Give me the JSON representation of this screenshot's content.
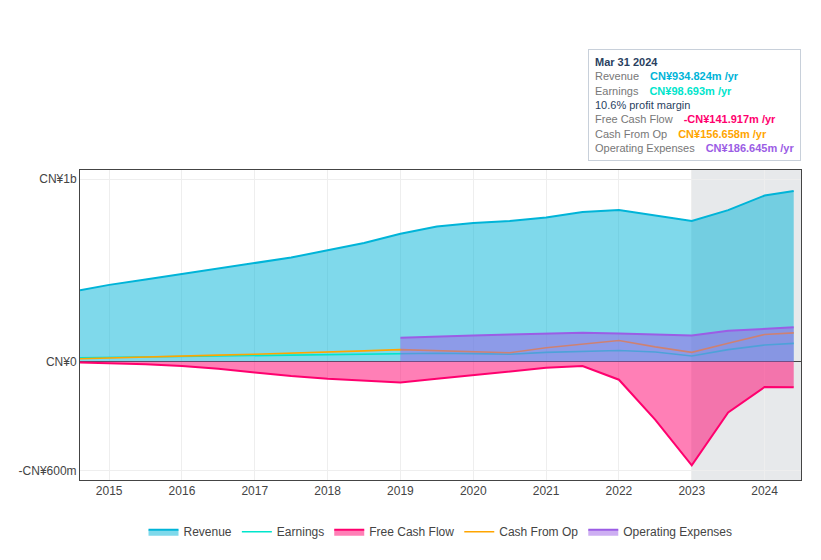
{
  "chart_data": {
    "type": "area",
    "x": [
      2014.6,
      2015.0,
      2015.5,
      2016.0,
      2016.5,
      2017.0,
      2017.5,
      2018.0,
      2018.5,
      2019.0,
      2019.5,
      2020.0,
      2020.5,
      2021.0,
      2021.5,
      2022.0,
      2022.5,
      2023.0,
      2023.5,
      2024.0,
      2024.4
    ],
    "series": [
      {
        "name": "Revenue",
        "color": "#00b4d8",
        "type": "area",
        "values": [
          390,
          420,
          450,
          480,
          510,
          540,
          570,
          610,
          650,
          700,
          740,
          760,
          770,
          790,
          820,
          830,
          800,
          770,
          830,
          910,
          935
        ]
      },
      {
        "name": "Earnings",
        "color": "#00e5cc",
        "type": "line",
        "values": [
          20,
          22,
          25,
          28,
          30,
          32,
          35,
          38,
          40,
          42,
          45,
          43,
          40,
          50,
          55,
          60,
          52,
          30,
          65,
          90,
          99
        ]
      },
      {
        "name": "Free Cash Flow",
        "color": "#ff006e",
        "type": "area",
        "values": [
          -5,
          -8,
          -15,
          -25,
          -40,
          -60,
          -80,
          -95,
          -105,
          -115,
          -95,
          -75,
          -55,
          -35,
          -25,
          -100,
          -320,
          -570,
          -280,
          -140,
          -142
        ]
      },
      {
        "name": "Cash From Op",
        "color": "#ffa500",
        "type": "line",
        "values": [
          15,
          20,
          25,
          30,
          35,
          40,
          45,
          52,
          58,
          65,
          60,
          52,
          48,
          75,
          95,
          115,
          80,
          50,
          100,
          148,
          157
        ]
      },
      {
        "name": "Operating Expenses",
        "color": "#9b5de5",
        "type": "area",
        "x": [
          2019.0,
          2019.5,
          2020.0,
          2020.5,
          2021.0,
          2021.5,
          2022.0,
          2022.5,
          2023.0,
          2023.5,
          2024.0,
          2024.4
        ],
        "values": [
          130,
          138,
          143,
          148,
          153,
          158,
          153,
          148,
          143,
          168,
          178,
          187
        ]
      }
    ],
    "xlim": [
      2014.6,
      2024.5
    ],
    "xticks": [
      2015,
      2016,
      2017,
      2018,
      2019,
      2020,
      2021,
      2022,
      2023,
      2024
    ],
    "ylim": [
      -650,
      1050
    ],
    "yticks": [
      {
        "value": 1000,
        "label": "CN¥1b"
      },
      {
        "value": 0,
        "label": "CN¥0"
      },
      {
        "value": -600,
        "label": "-CN¥600m"
      }
    ],
    "grid": true,
    "legend": "bottom",
    "shade_from": 2023.0,
    "annotations": [
      {
        "text": "Mar 31 2024"
      },
      {
        "label": "Revenue",
        "text": "CN¥934.824m /yr",
        "color": "#00b4d8"
      },
      {
        "label": "Earnings",
        "text": "CN¥98.693m /yr",
        "color": "#00e5cc"
      },
      {
        "text": "10.6% profit margin"
      },
      {
        "label": "Free Cash Flow",
        "text": "-CN¥141.917m /yr",
        "color": "#ff006e"
      },
      {
        "label": "Cash From Op",
        "text": "CN¥156.658m /yr",
        "color": "#ffa500"
      },
      {
        "label": "Operating Expenses",
        "text": "CN¥186.645m /yr",
        "color": "#9b5de5"
      }
    ]
  }
}
